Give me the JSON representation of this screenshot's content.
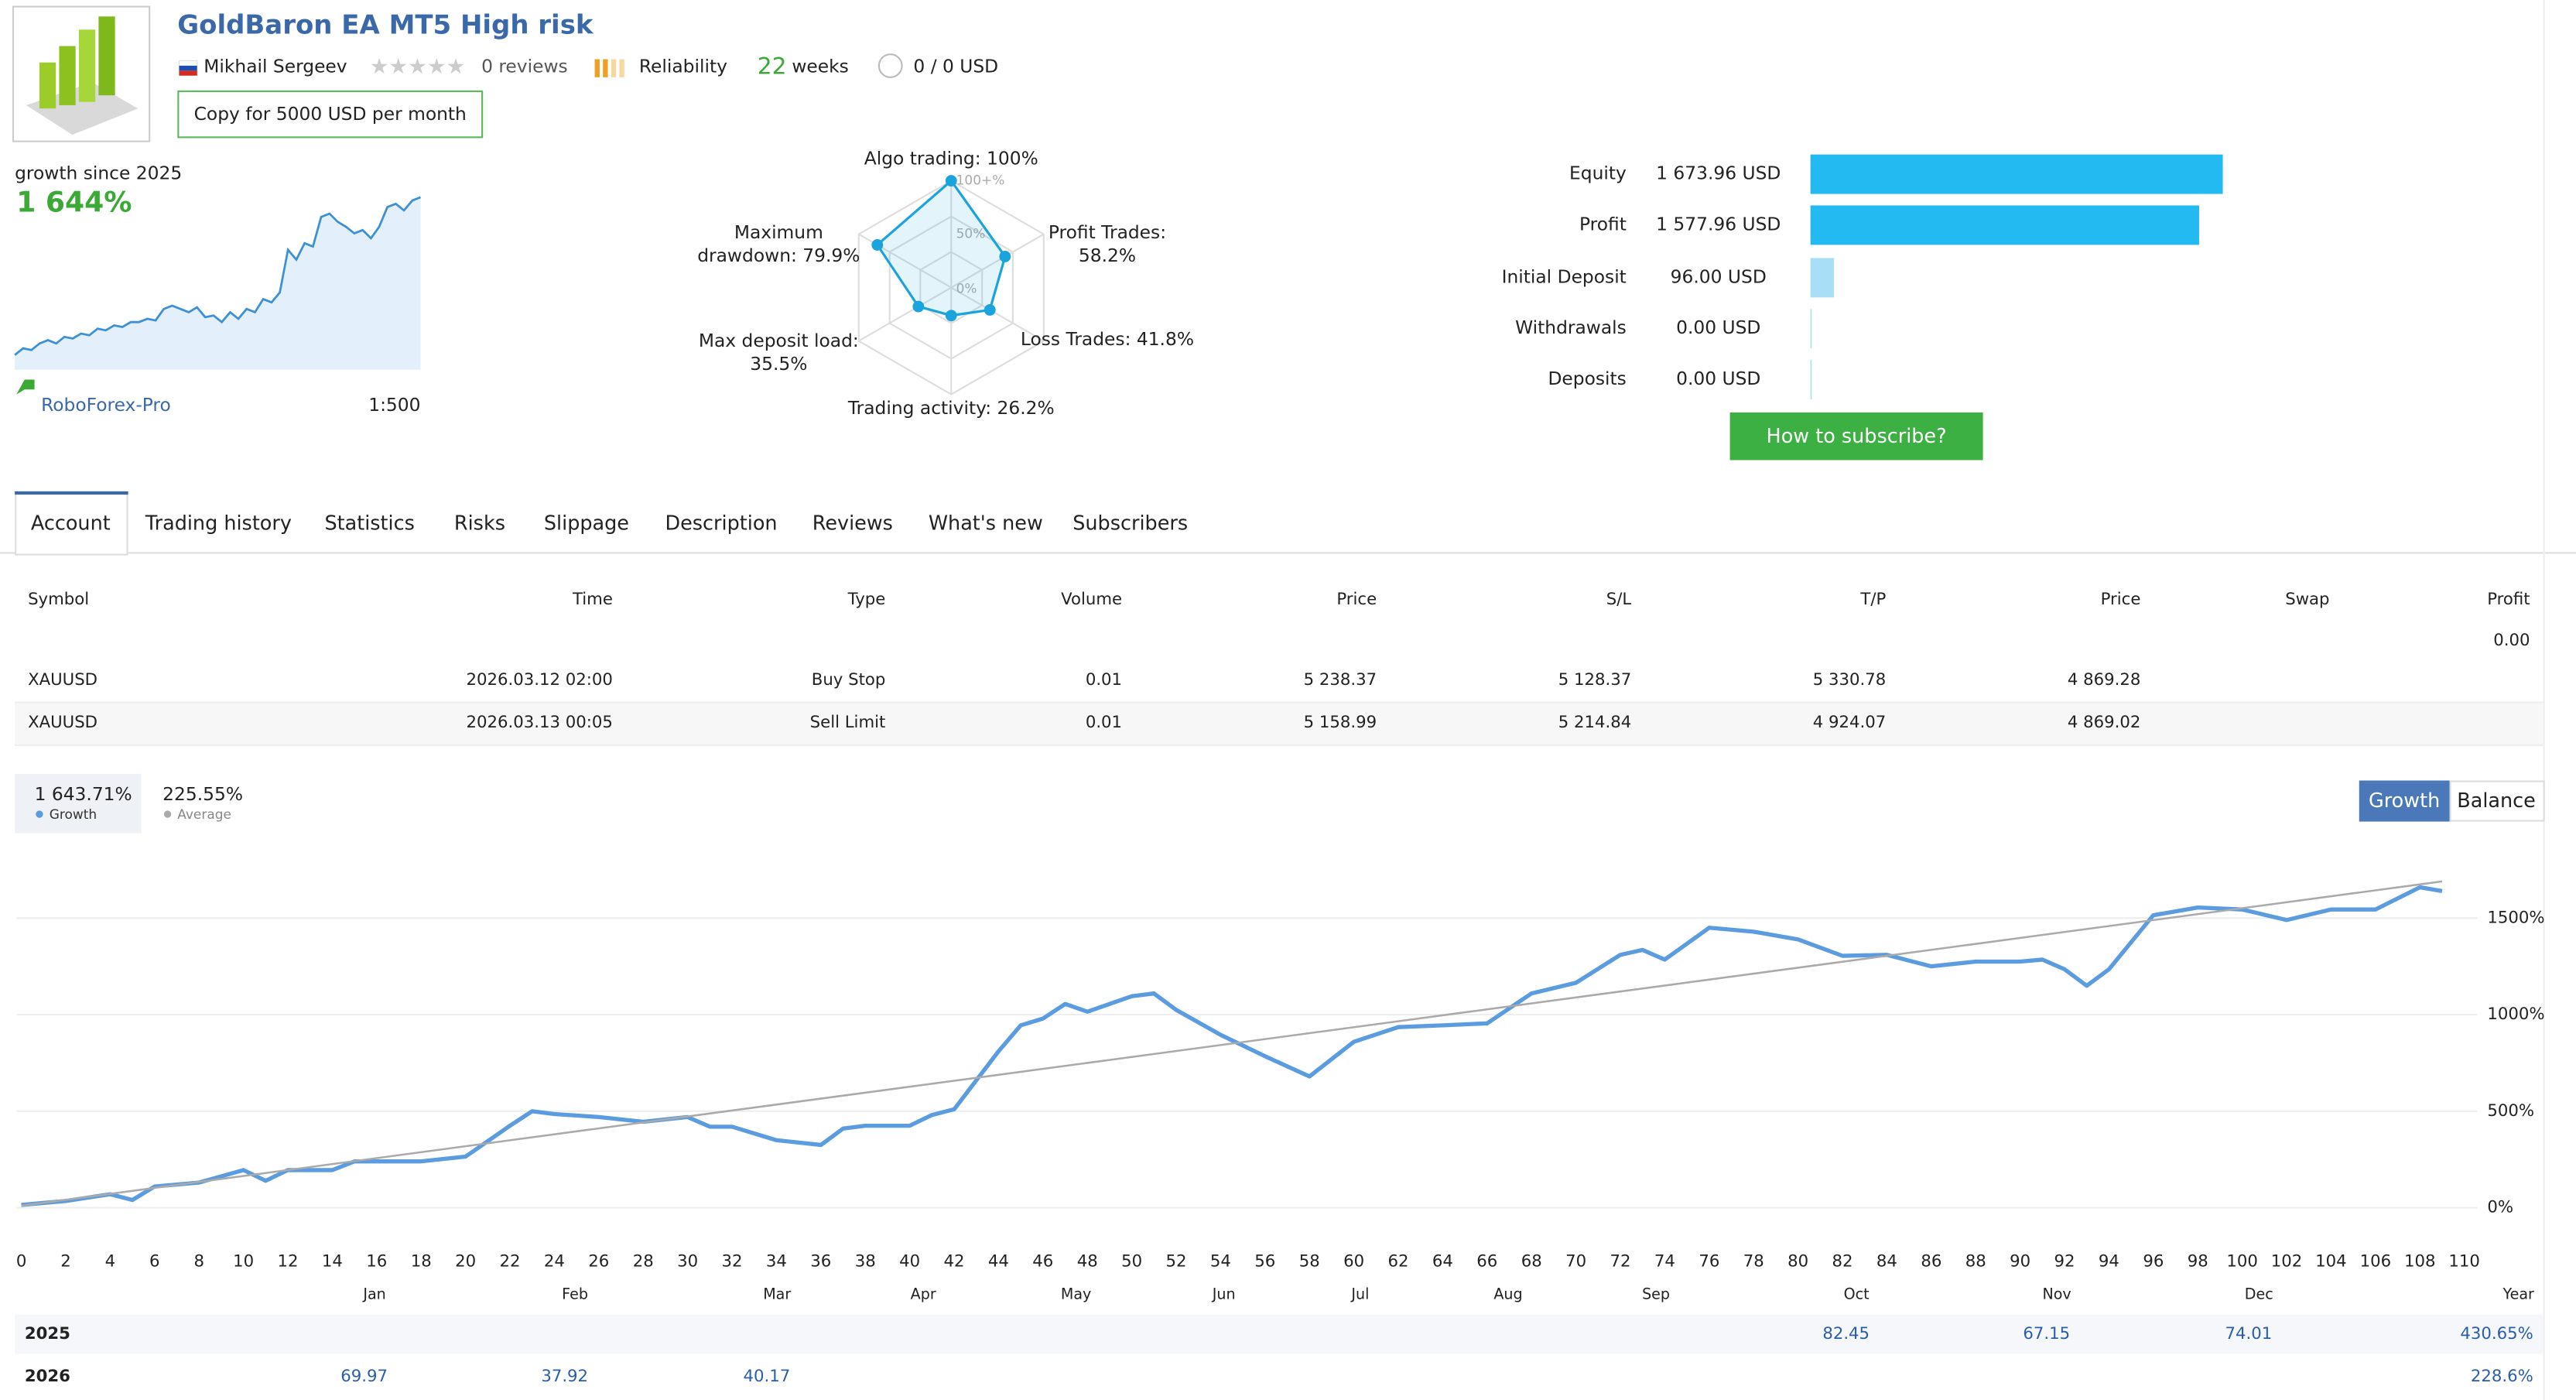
{
  "header": {
    "title": "GoldBaron EA MT5 High risk",
    "author": "Mikhail Sergeev",
    "reviews": "0 reviews",
    "reliability": "Reliability",
    "weeks_value": "22",
    "weeks_label": "weeks",
    "subscribers": "0 / 0 USD",
    "copy_button": "Copy for 5000 USD per month",
    "broker": "RoboForex-Pro",
    "leverage": "1:500"
  },
  "tabs": {
    "items": [
      "Account",
      "Trading history",
      "Statistics",
      "Risks",
      "Slippage",
      "Description",
      "Reviews",
      "What's new",
      "Subscribers"
    ],
    "active": 0
  },
  "table": {
    "headers": [
      "Symbol",
      "Time",
      "Type",
      "Volume",
      "Price",
      "S/L",
      "T/P",
      "Price",
      "Swap",
      "Profit"
    ],
    "total": "0.00",
    "rows": [
      [
        "XAUUSD",
        "2026.03.12 02:00",
        "Buy Stop",
        "0.01",
        "5 238.37",
        "5 128.37",
        "5 330.78",
        "4 869.28"
      ],
      [
        "XAUUSD",
        "2026.03.13 00:05",
        "Sell Limit",
        "0.01",
        "5 158.99",
        "5 214.84",
        "4 924.07",
        "4 869.02"
      ]
    ]
  },
  "chart_data": [
    {
      "type": "sparkline",
      "title": "growth since 2025",
      "value_label": "1 644%",
      "color": "#3d8fd6",
      "ylim": [
        0,
        1700
      ],
      "values": [
        34,
        102,
        85,
        153,
        187,
        153,
        221,
        204,
        255,
        238,
        306,
        289,
        340,
        323,
        374,
        374,
        408,
        391,
        510,
        544,
        510,
        476,
        527,
        425,
        442,
        374,
        476,
        408,
        510,
        476,
        612,
        578,
        680,
        1122,
        1020,
        1190,
        1156,
        1462,
        1496,
        1411,
        1360,
        1292,
        1326,
        1241,
        1360,
        1564,
        1598,
        1530,
        1632,
        1666
      ]
    },
    {
      "type": "radar",
      "color": "#1aa3dc",
      "labels": [
        [
          "Algo trading: 100%"
        ],
        [
          "Profit Trades:",
          "58.2%"
        ],
        [
          "Loss Trades: 41.8%"
        ],
        [
          "Trading activity: 26.2%"
        ],
        [
          "Max deposit load:",
          "35.5%"
        ],
        [
          "Maximum",
          "drawdown: 79.9%"
        ]
      ],
      "values": [
        100,
        58.2,
        41.8,
        26.2,
        35.5,
        79.9
      ],
      "rticks": [
        {
          "value": 0,
          "label": "0%"
        },
        {
          "value": 50,
          "label": "50%"
        },
        {
          "value": 100,
          "label": "100+%"
        }
      ]
    },
    {
      "type": "hbar",
      "categories": [
        "Equity",
        "Profit",
        "Initial Deposit",
        "Withdrawals",
        "Deposits"
      ],
      "values": [
        1673.96,
        1577.96,
        96,
        0,
        0
      ],
      "value_labels": [
        "1 673.96 USD",
        "1 577.96 USD",
        "96.00 USD",
        "0.00 USD",
        "0.00 USD"
      ],
      "colors": [
        "#22baf0",
        "#22baf0",
        "#a9dff6",
        "#a9dff6",
        "#a9dff6"
      ],
      "xlim": [
        0,
        1674
      ],
      "button": "How to subscribe?"
    },
    {
      "type": "line",
      "xlim": [
        0,
        110
      ],
      "ylim": [
        -170,
        1800
      ],
      "xticks": [
        0,
        2,
        4,
        6,
        8,
        10,
        12,
        14,
        16,
        18,
        20,
        22,
        24,
        26,
        28,
        30,
        32,
        34,
        36,
        38,
        40,
        42,
        44,
        46,
        48,
        50,
        52,
        54,
        56,
        58,
        60,
        62,
        64,
        66,
        68,
        70,
        72,
        74,
        76,
        78,
        80,
        82,
        84,
        86,
        88,
        90,
        92,
        94,
        96,
        98,
        100,
        102,
        104,
        106,
        108,
        110
      ],
      "yticks": [
        {
          "value": 0,
          "label": "0%"
        },
        {
          "value": 500,
          "label": "500%"
        },
        {
          "value": 1000,
          "label": "1000%"
        },
        {
          "value": 1500,
          "label": "1500%"
        }
      ],
      "grid": true,
      "buttons": [
        "Growth",
        "Balance"
      ],
      "active_button": 0,
      "x": [
        0,
        2,
        4,
        5,
        6,
        8,
        10,
        11,
        12,
        14,
        15,
        16,
        18,
        20,
        22,
        23,
        24,
        26,
        28,
        30,
        31,
        32,
        34,
        36,
        37,
        38,
        40,
        41,
        42,
        44,
        45,
        46,
        47,
        48,
        50,
        51,
        52,
        54,
        56,
        58,
        60,
        62,
        64,
        66,
        68,
        70,
        72,
        73,
        74,
        76,
        78,
        80,
        82,
        84,
        86,
        88,
        90,
        91,
        92,
        93,
        94,
        96,
        98,
        100,
        102,
        104,
        106,
        108,
        109
      ],
      "series": [
        {
          "name": "Growth",
          "value_label": "1 643.71%",
          "color": "#5b9be0",
          "values": [
            15,
            35,
            70,
            40,
            110,
            130,
            195,
            140,
            195,
            195,
            240,
            240,
            240,
            265,
            425,
            500,
            485,
            470,
            445,
            470,
            420,
            420,
            350,
            325,
            410,
            425,
            425,
            480,
            510,
            810,
            945,
            980,
            1055,
            1015,
            1095,
            1110,
            1025,
            895,
            785,
            680,
            860,
            935,
            945,
            955,
            1110,
            1165,
            1310,
            1335,
            1285,
            1450,
            1430,
            1390,
            1305,
            1310,
            1250,
            1275,
            1275,
            1285,
            1235,
            1150,
            1235,
            1515,
            1555,
            1545,
            1490,
            1545,
            1545,
            1660,
            1640
          ]
        },
        {
          "name": "Average",
          "value_label": "225.55%",
          "color": "#aaaaaa",
          "x": [
            0,
            109
          ],
          "values": [
            10,
            1690
          ]
        }
      ]
    }
  ],
  "year_table": {
    "months": [
      "Jan",
      "Feb",
      "Mar",
      "Apr",
      "May",
      "Jun",
      "Jul",
      "Aug",
      "Sep",
      "Oct",
      "Nov",
      "Dec",
      "Year"
    ],
    "rows": [
      {
        "year": "2025",
        "values": [
          null,
          null,
          null,
          null,
          null,
          null,
          null,
          null,
          null,
          "82.45",
          "67.15",
          "74.01"
        ],
        "total": "430.65%"
      },
      {
        "year": "2026",
        "values": [
          "69.97",
          "37.92",
          "40.17",
          null,
          null,
          null,
          null,
          null,
          null,
          null,
          null,
          null
        ],
        "total": "228.6%"
      }
    ]
  }
}
